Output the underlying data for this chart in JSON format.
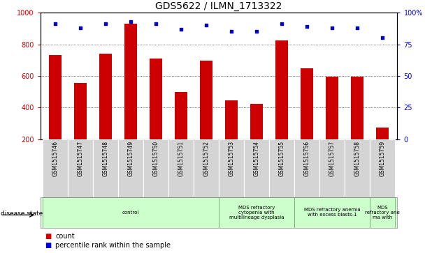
{
  "title": "GDS5622 / ILMN_1713322",
  "samples": [
    "GSM1515746",
    "GSM1515747",
    "GSM1515748",
    "GSM1515749",
    "GSM1515750",
    "GSM1515751",
    "GSM1515752",
    "GSM1515753",
    "GSM1515754",
    "GSM1515755",
    "GSM1515756",
    "GSM1515757",
    "GSM1515758",
    "GSM1515759"
  ],
  "counts": [
    730,
    555,
    740,
    930,
    710,
    500,
    695,
    445,
    425,
    825,
    650,
    595,
    595,
    275
  ],
  "percentiles": [
    91,
    88,
    91,
    93,
    91,
    87,
    90,
    85,
    85,
    91,
    89,
    88,
    88,
    80
  ],
  "bar_color": "#cc0000",
  "dot_color": "#0000cc",
  "ylim_left": [
    200,
    1000
  ],
  "ylim_right": [
    0,
    100
  ],
  "yticks_left": [
    200,
    400,
    600,
    800,
    1000
  ],
  "yticks_right": [
    0,
    25,
    50,
    75,
    100
  ],
  "grid_values": [
    400,
    600,
    800
  ],
  "disease_groups": [
    {
      "label": "control",
      "start": 0,
      "end": 7
    },
    {
      "label": "MDS refractory\ncytopenia with\nmultilineage dysplasia",
      "start": 7,
      "end": 10
    },
    {
      "label": "MDS refractory anemia\nwith excess blasts-1",
      "start": 10,
      "end": 13
    },
    {
      "label": "MDS\nrefractory ane\nma with",
      "start": 13,
      "end": 14
    }
  ],
  "disease_state_label": "disease state",
  "legend_count": "count",
  "legend_percentile": "percentile rank within the sample",
  "bar_width": 0.5,
  "title_fontsize": 10,
  "tick_fontsize": 7,
  "sample_fontsize": 5.5,
  "disease_fontsize": 5,
  "legend_fontsize": 7
}
